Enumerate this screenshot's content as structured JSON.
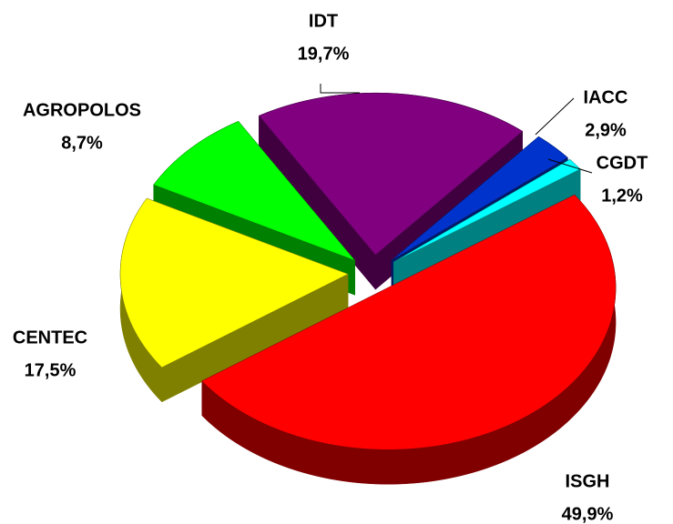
{
  "chart_data": {
    "type": "pie",
    "categories": [
      "ISGH",
      "CENTEC",
      "AGROPOLOS",
      "IDT",
      "IACC",
      "CGDT"
    ],
    "values": [
      49.9,
      17.5,
      8.7,
      19.7,
      2.9,
      1.2
    ],
    "value_labels": [
      "49,9%",
      "17,5%",
      "8,7%",
      "19,7%",
      "2,9%",
      "1,2%"
    ],
    "colors": [
      "#ff0000",
      "#ffff00",
      "#00ff00",
      "#800080",
      "#0033cc",
      "#00ffff"
    ]
  }
}
